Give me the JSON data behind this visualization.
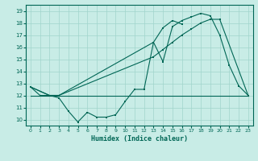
{
  "title": "",
  "xlabel": "Humidex (Indice chaleur)",
  "bg_color": "#c8ece6",
  "grid_color": "#a0d4cc",
  "line_color": "#006655",
  "xlim": [
    -0.5,
    23.5
  ],
  "ylim": [
    9.5,
    19.5
  ],
  "yticks": [
    10,
    11,
    12,
    13,
    14,
    15,
    16,
    17,
    18,
    19
  ],
  "xticks": [
    0,
    1,
    2,
    3,
    4,
    5,
    6,
    7,
    8,
    9,
    10,
    11,
    12,
    13,
    14,
    15,
    16,
    17,
    18,
    19,
    20,
    21,
    22,
    23
  ],
  "line1_x": [
    0,
    1,
    2,
    3,
    4,
    5,
    6,
    7,
    8,
    9,
    10,
    11,
    12,
    13,
    14,
    15,
    16
  ],
  "line1_y": [
    12.7,
    12.0,
    12.0,
    11.8,
    10.7,
    9.8,
    10.6,
    10.2,
    10.2,
    10.4,
    11.5,
    12.5,
    12.5,
    16.4,
    17.6,
    18.2,
    17.9
  ],
  "line2_x": [
    0,
    1,
    2,
    3,
    4,
    5,
    6,
    7,
    8,
    9,
    10,
    11,
    12,
    13,
    14,
    15,
    16,
    17,
    18,
    19,
    20,
    21,
    22,
    23
  ],
  "line2_y": [
    12.0,
    12.0,
    12.0,
    12.0,
    12.0,
    12.0,
    12.0,
    12.0,
    12.0,
    12.0,
    12.0,
    12.0,
    12.0,
    12.0,
    12.0,
    12.0,
    12.0,
    12.0,
    12.0,
    12.0,
    12.0,
    12.0,
    12.0,
    12.0
  ],
  "line3_x": [
    0,
    2,
    3,
    13,
    14,
    15,
    16,
    17,
    18,
    19,
    20,
    21,
    22,
    23
  ],
  "line3_y": [
    12.7,
    12.0,
    12.0,
    16.4,
    14.8,
    17.7,
    18.2,
    18.5,
    18.8,
    18.6,
    17.0,
    14.5,
    12.8,
    12.0
  ],
  "line4_x": [
    0,
    2,
    3,
    13,
    14,
    15,
    16,
    17,
    18,
    19,
    20,
    23
  ],
  "line4_y": [
    12.7,
    12.0,
    12.0,
    15.2,
    15.8,
    16.4,
    17.0,
    17.5,
    18.0,
    18.3,
    18.3,
    12.0
  ]
}
